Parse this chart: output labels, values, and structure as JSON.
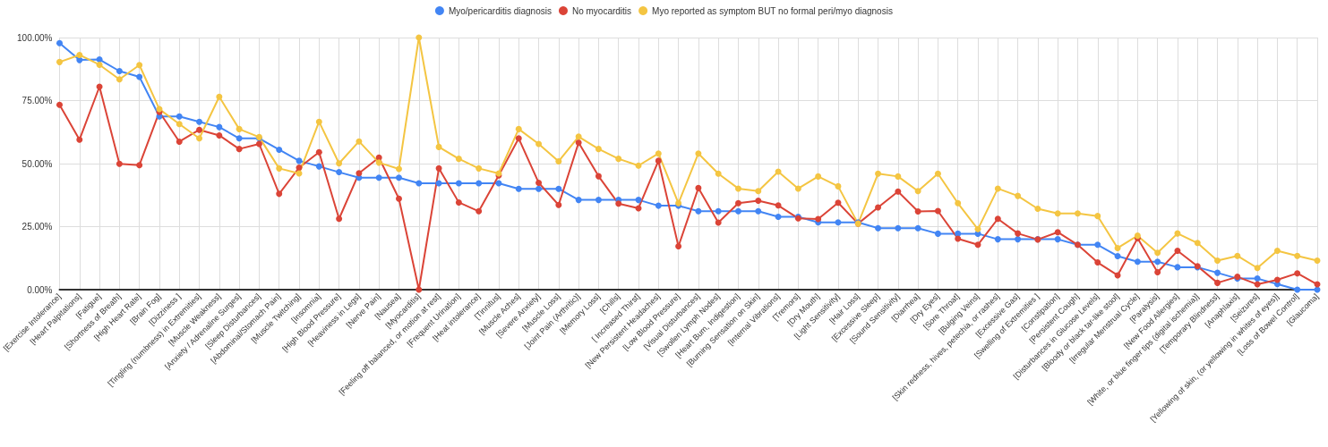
{
  "chart_data": {
    "type": "line",
    "categories": [
      "[Exercise Intolerance]",
      "[Heart Palpitations]",
      "[Fatigue]",
      "[Shortness of Breath]",
      "[High Heart Rate]",
      "[Brain Fog]",
      "[Dizziness ]",
      "[Tingling (numbness) in Extremities]",
      "[Muscle Weakness]",
      "[Anxiety / Adrenaline Surges]",
      "[Sleep Disturbances]",
      "[Abdominal/Stomach Pain]",
      "[Muscle Twitching]",
      "[Insomnia]",
      "[High Blood Pressure]",
      "[Heaviness in Legs]",
      "[Nerve Pain]",
      "[Nausea]",
      "[Myocarditis]",
      "[Feeling off balanced, or motion at rest]",
      "[Frequent Urination]",
      "[Heat intolerance]",
      "[Tinnitus]",
      "[Muscle Aches]",
      "[Severe Anxiety]",
      "[Muscle Loss]",
      "[Joint Pain (Arthritic)]",
      "[Memory Loss]",
      "[Chills]",
      "[ Increased Thirst]",
      "[New Persistent Headaches]",
      "[Low Blood Pressure]",
      "[Visual Disturbances]",
      "[Swollen Lymph Nodes]",
      "[Heart Burn, Indigestion]",
      "[Burning Sensation on Skin]",
      "[Internal Vibrations]",
      "[Tremors]",
      "[Dry Mouth]",
      "[Light Sensitivity]",
      "[Hair Loss]",
      "[Excessive Sleep]",
      "[Sound Sensitivity]",
      "[Diarrhea]",
      "[Dry Eyes]",
      "[Sore Throat]",
      "[Bulging Veins]",
      "[Skin redness, hives, petechia, or rashes]",
      "[Excessive Gas]",
      "[Swelling of Extremities ]",
      "[Constipation]",
      "[Persistent Cough]",
      "[Disturbances in Glucose Levels]",
      "[Bloody or black tar-like stool]",
      "[Irregular Menstrual Cycle]",
      "[Paralysis]",
      "[New Food Allergies]",
      "[White, or blue finger tips (digital ischemia)]",
      "[Temporary Blindness]",
      "[Anaphlaxis]",
      "[Seizures]",
      "[Yellowing of skin, (or yellowing in whites of eyes)]",
      "[Loss of Bowel Control]",
      "[Glaucoma]"
    ],
    "series": [
      {
        "name": "Myo/pericarditis diagnosis",
        "color": "#4285f4",
        "values": [
          97.8,
          91.1,
          91.3,
          86.7,
          84.4,
          68.7,
          68.7,
          66.6,
          64.5,
          60,
          60,
          55.5,
          51.1,
          48.9,
          46.6,
          44.4,
          44.4,
          44.4,
          42.2,
          42.2,
          42.2,
          42.2,
          42.2,
          40,
          40,
          40,
          35.6,
          35.6,
          35.6,
          35.6,
          33.3,
          33.3,
          31.1,
          31.1,
          31.1,
          31.1,
          28.9,
          28.9,
          26.7,
          26.7,
          26.7,
          24.4,
          24.4,
          24.4,
          22.2,
          22.2,
          22.2,
          20,
          20,
          20,
          20,
          17.8,
          17.8,
          13.3,
          11.1,
          11.1,
          8.9,
          8.9,
          6.7,
          4.4,
          4.4,
          2.2,
          0,
          0
        ]
      },
      {
        "name": "No myocarditis",
        "color": "#db4437",
        "values": [
          73.3,
          59.5,
          80.5,
          49.9,
          49.4,
          70.5,
          58.7,
          63.4,
          61.2,
          55.8,
          57.8,
          38,
          48.4,
          54.5,
          28.1,
          46.2,
          52.4,
          36.1,
          0,
          48.1,
          34.6,
          31.1,
          45.3,
          60,
          42.4,
          33.6,
          58.3,
          45,
          34.1,
          32.3,
          51.1,
          17.2,
          40.3,
          26.6,
          34.3,
          35.3,
          33.4,
          28.3,
          28,
          34.5,
          26.2,
          32.6,
          38.9,
          31,
          31.2,
          20.2,
          17.8,
          28.1,
          22.3,
          19.9,
          22.8,
          17.8,
          10.8,
          5.7,
          20.4,
          6.9,
          15.4,
          9.3,
          2.7,
          5.1,
          2.1,
          3.9,
          6.5,
          2.1
        ]
      },
      {
        "name": "Myo reported as symptom BUT no formal peri/myo diagnosis",
        "color": "#f4c542",
        "values": [
          90.3,
          93.1,
          89.2,
          83.4,
          89.1,
          71.6,
          65.7,
          60,
          76.5,
          63.7,
          60.5,
          48.1,
          46.1,
          66.6,
          50.1,
          58.8,
          50.4,
          47.9,
          100,
          56.6,
          51.9,
          48.1,
          46.1,
          63.7,
          57.8,
          50.9,
          60.7,
          55.8,
          51.9,
          49.2,
          54,
          34.3,
          54,
          46,
          40.1,
          39.1,
          46.8,
          40.1,
          44.9,
          41,
          26.2,
          46,
          44.9,
          39.1,
          46,
          34.3,
          24,
          40.1,
          37.2,
          32.1,
          30.2,
          30.2,
          29.2,
          16.5,
          21.4,
          14.6,
          22.3,
          18.5,
          11.5,
          13.4,
          8.6,
          15.4,
          13.4,
          11.5
        ]
      }
    ],
    "ylim": [
      0,
      100
    ],
    "yticks": [
      {
        "value": 0,
        "label": "0.00%"
      },
      {
        "value": 25,
        "label": "25.00%"
      },
      {
        "value": 50,
        "label": "50.00%"
      },
      {
        "value": 75,
        "label": "75.00%"
      },
      {
        "value": 100,
        "label": "100.00%"
      }
    ],
    "grid": true,
    "legend": "top",
    "marker": "circle",
    "line_style": "solid"
  }
}
